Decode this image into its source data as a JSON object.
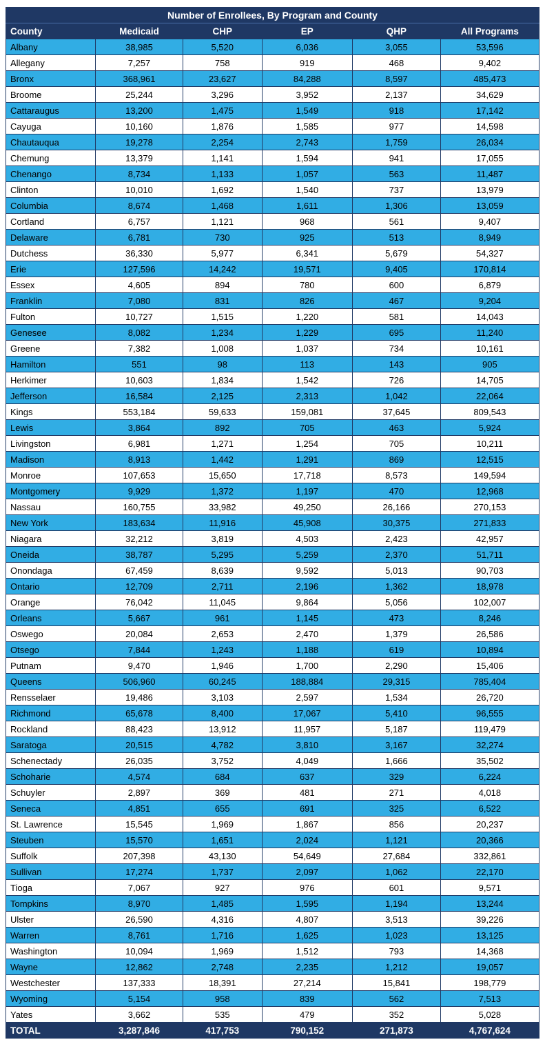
{
  "title": "Number of Enrollees, By Program and County",
  "columns": [
    "County",
    "Medicaid",
    "CHP",
    "EP",
    "QHP",
    "All Programs"
  ],
  "rows": [
    [
      "Albany",
      "38,985",
      "5,520",
      "6,036",
      "3,055",
      "53,596"
    ],
    [
      "Allegany",
      "7,257",
      "758",
      "919",
      "468",
      "9,402"
    ],
    [
      "Bronx",
      "368,961",
      "23,627",
      "84,288",
      "8,597",
      "485,473"
    ],
    [
      "Broome",
      "25,244",
      "3,296",
      "3,952",
      "2,137",
      "34,629"
    ],
    [
      "Cattaraugus",
      "13,200",
      "1,475",
      "1,549",
      "918",
      "17,142"
    ],
    [
      "Cayuga",
      "10,160",
      "1,876",
      "1,585",
      "977",
      "14,598"
    ],
    [
      "Chautauqua",
      "19,278",
      "2,254",
      "2,743",
      "1,759",
      "26,034"
    ],
    [
      "Chemung",
      "13,379",
      "1,141",
      "1,594",
      "941",
      "17,055"
    ],
    [
      "Chenango",
      "8,734",
      "1,133",
      "1,057",
      "563",
      "11,487"
    ],
    [
      "Clinton",
      "10,010",
      "1,692",
      "1,540",
      "737",
      "13,979"
    ],
    [
      "Columbia",
      "8,674",
      "1,468",
      "1,611",
      "1,306",
      "13,059"
    ],
    [
      "Cortland",
      "6,757",
      "1,121",
      "968",
      "561",
      "9,407"
    ],
    [
      "Delaware",
      "6,781",
      "730",
      "925",
      "513",
      "8,949"
    ],
    [
      "Dutchess",
      "36,330",
      "5,977",
      "6,341",
      "5,679",
      "54,327"
    ],
    [
      "Erie",
      "127,596",
      "14,242",
      "19,571",
      "9,405",
      "170,814"
    ],
    [
      "Essex",
      "4,605",
      "894",
      "780",
      "600",
      "6,879"
    ],
    [
      "Franklin",
      "7,080",
      "831",
      "826",
      "467",
      "9,204"
    ],
    [
      "Fulton",
      "10,727",
      "1,515",
      "1,220",
      "581",
      "14,043"
    ],
    [
      "Genesee",
      "8,082",
      "1,234",
      "1,229",
      "695",
      "11,240"
    ],
    [
      "Greene",
      "7,382",
      "1,008",
      "1,037",
      "734",
      "10,161"
    ],
    [
      "Hamilton",
      "551",
      "98",
      "113",
      "143",
      "905"
    ],
    [
      "Herkimer",
      "10,603",
      "1,834",
      "1,542",
      "726",
      "14,705"
    ],
    [
      "Jefferson",
      "16,584",
      "2,125",
      "2,313",
      "1,042",
      "22,064"
    ],
    [
      "Kings",
      "553,184",
      "59,633",
      "159,081",
      "37,645",
      "809,543"
    ],
    [
      "Lewis",
      "3,864",
      "892",
      "705",
      "463",
      "5,924"
    ],
    [
      "Livingston",
      "6,981",
      "1,271",
      "1,254",
      "705",
      "10,211"
    ],
    [
      "Madison",
      "8,913",
      "1,442",
      "1,291",
      "869",
      "12,515"
    ],
    [
      "Monroe",
      "107,653",
      "15,650",
      "17,718",
      "8,573",
      "149,594"
    ],
    [
      "Montgomery",
      "9,929",
      "1,372",
      "1,197",
      "470",
      "12,968"
    ],
    [
      "Nassau",
      "160,755",
      "33,982",
      "49,250",
      "26,166",
      "270,153"
    ],
    [
      "New York",
      "183,634",
      "11,916",
      "45,908",
      "30,375",
      "271,833"
    ],
    [
      "Niagara",
      "32,212",
      "3,819",
      "4,503",
      "2,423",
      "42,957"
    ],
    [
      "Oneida",
      "38,787",
      "5,295",
      "5,259",
      "2,370",
      "51,711"
    ],
    [
      "Onondaga",
      "67,459",
      "8,639",
      "9,592",
      "5,013",
      "90,703"
    ],
    [
      "Ontario",
      "12,709",
      "2,711",
      "2,196",
      "1,362",
      "18,978"
    ],
    [
      "Orange",
      "76,042",
      "11,045",
      "9,864",
      "5,056",
      "102,007"
    ],
    [
      "Orleans",
      "5,667",
      "961",
      "1,145",
      "473",
      "8,246"
    ],
    [
      "Oswego",
      "20,084",
      "2,653",
      "2,470",
      "1,379",
      "26,586"
    ],
    [
      "Otsego",
      "7,844",
      "1,243",
      "1,188",
      "619",
      "10,894"
    ],
    [
      "Putnam",
      "9,470",
      "1,946",
      "1,700",
      "2,290",
      "15,406"
    ],
    [
      "Queens",
      "506,960",
      "60,245",
      "188,884",
      "29,315",
      "785,404"
    ],
    [
      "Rensselaer",
      "19,486",
      "3,103",
      "2,597",
      "1,534",
      "26,720"
    ],
    [
      "Richmond",
      "65,678",
      "8,400",
      "17,067",
      "5,410",
      "96,555"
    ],
    [
      "Rockland",
      "88,423",
      "13,912",
      "11,957",
      "5,187",
      "119,479"
    ],
    [
      "Saratoga",
      "20,515",
      "4,782",
      "3,810",
      "3,167",
      "32,274"
    ],
    [
      "Schenectady",
      "26,035",
      "3,752",
      "4,049",
      "1,666",
      "35,502"
    ],
    [
      "Schoharie",
      "4,574",
      "684",
      "637",
      "329",
      "6,224"
    ],
    [
      "Schuyler",
      "2,897",
      "369",
      "481",
      "271",
      "4,018"
    ],
    [
      "Seneca",
      "4,851",
      "655",
      "691",
      "325",
      "6,522"
    ],
    [
      "St. Lawrence",
      "15,545",
      "1,969",
      "1,867",
      "856",
      "20,237"
    ],
    [
      "Steuben",
      "15,570",
      "1,651",
      "2,024",
      "1,121",
      "20,366"
    ],
    [
      "Suffolk",
      "207,398",
      "43,130",
      "54,649",
      "27,684",
      "332,861"
    ],
    [
      "Sullivan",
      "17,274",
      "1,737",
      "2,097",
      "1,062",
      "22,170"
    ],
    [
      "Tioga",
      "7,067",
      "927",
      "976",
      "601",
      "9,571"
    ],
    [
      "Tompkins",
      "8,970",
      "1,485",
      "1,595",
      "1,194",
      "13,244"
    ],
    [
      "Ulster",
      "26,590",
      "4,316",
      "4,807",
      "3,513",
      "39,226"
    ],
    [
      "Warren",
      "8,761",
      "1,716",
      "1,625",
      "1,023",
      "13,125"
    ],
    [
      "Washington",
      "10,094",
      "1,969",
      "1,512",
      "793",
      "14,368"
    ],
    [
      "Wayne",
      "12,862",
      "2,748",
      "2,235",
      "1,212",
      "19,057"
    ],
    [
      "Westchester",
      "137,333",
      "18,391",
      "27,214",
      "15,841",
      "198,779"
    ],
    [
      "Wyoming",
      "5,154",
      "958",
      "839",
      "562",
      "7,513"
    ],
    [
      "Yates",
      "3,662",
      "535",
      "479",
      "352",
      "5,028"
    ]
  ],
  "total_row": {
    "label": "TOTAL",
    "values": [
      "3,287,846",
      "417,753",
      "790,152",
      "271,873",
      "4,767,624"
    ]
  },
  "colors": {
    "header_bg": "#1F3864",
    "header_text": "#FFFFFF",
    "alt_row_bg": "#31ADE4",
    "row_bg": "#FFFFFF",
    "body_text": "#000000",
    "border": "#1F3864"
  }
}
